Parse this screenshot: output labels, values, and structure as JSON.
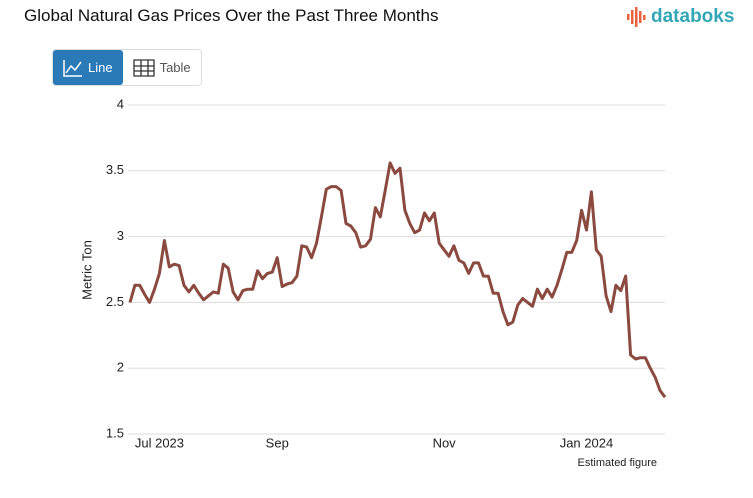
{
  "header": {
    "title": "Global Natural Gas Prices Over the Past Three Months",
    "logo": "databoks"
  },
  "buttons": [
    "Line",
    "Table"
  ],
  "chart_data": {
    "type": "line",
    "y_label": "Metric Ton",
    "note": "Estimated figure",
    "color": "#8b4a3f",
    "grid": true,
    "ylim": [
      1.5,
      4
    ],
    "yticks": [
      1.5,
      2,
      2.5,
      3,
      3.5,
      4
    ],
    "categories": [
      null,
      null,
      null,
      null,
      null,
      null,
      "Jul 2023",
      null,
      null,
      null,
      null,
      null,
      null,
      null,
      null,
      null,
      null,
      null,
      null,
      null,
      null,
      null,
      null,
      null,
      null,
      null,
      null,
      null,
      null,
      null,
      "Sep",
      null,
      null,
      null,
      null,
      null,
      null,
      null,
      null,
      null,
      null,
      null,
      null,
      null,
      null,
      null,
      null,
      null,
      null,
      null,
      null,
      null,
      null,
      null,
      null,
      null,
      null,
      null,
      null,
      null,
      null,
      null,
      null,
      null,
      "Nov",
      null,
      null,
      null,
      null,
      null,
      null,
      null,
      null,
      null,
      null,
      null,
      null,
      null,
      null,
      null,
      null,
      null,
      null,
      null,
      null,
      null,
      null,
      null,
      null,
      null,
      null,
      null,
      null,
      "Jan 2024",
      null,
      null,
      null,
      null,
      null,
      null,
      null,
      null,
      null,
      null,
      null,
      null,
      null,
      null,
      null,
      null
    ],
    "values": [
      2.5,
      2.63,
      2.63,
      2.56,
      2.5,
      2.6,
      2.72,
      2.97,
      2.77,
      2.79,
      2.78,
      2.63,
      2.58,
      2.63,
      2.57,
      2.52,
      2.55,
      2.58,
      2.57,
      2.79,
      2.76,
      2.58,
      2.52,
      2.59,
      2.6,
      2.6,
      2.74,
      2.68,
      2.72,
      2.73,
      2.84,
      2.62,
      2.64,
      2.65,
      2.7,
      2.93,
      2.92,
      2.84,
      2.95,
      3.15,
      3.36,
      3.38,
      3.38,
      3.35,
      3.1,
      3.08,
      3.03,
      2.92,
      2.93,
      2.98,
      3.22,
      3.15,
      3.35,
      3.56,
      3.48,
      3.52,
      3.2,
      3.1,
      3.03,
      3.05,
      3.18,
      3.12,
      3.18,
      2.95,
      2.9,
      2.85,
      2.93,
      2.82,
      2.8,
      2.72,
      2.8,
      2.8,
      2.7,
      2.7,
      2.57,
      2.57,
      2.43,
      2.33,
      2.35,
      2.48,
      2.53,
      2.5,
      2.47,
      2.6,
      2.53,
      2.6,
      2.54,
      2.63,
      2.75,
      2.88,
      2.88,
      2.97,
      3.2,
      3.05,
      3.34,
      2.9,
      2.85,
      2.55,
      2.43,
      2.63,
      2.59,
      2.7,
      2.1,
      2.07,
      2.08,
      2.08,
      2.0,
      1.93,
      1.83,
      1.78
    ]
  }
}
